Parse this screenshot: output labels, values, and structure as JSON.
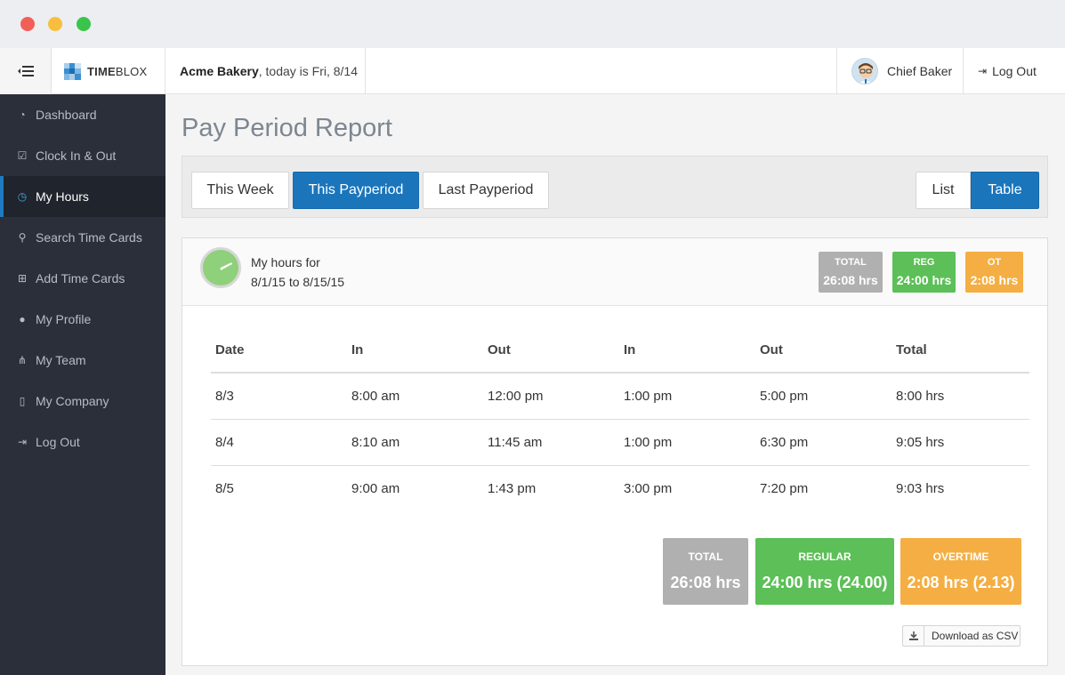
{
  "header": {
    "brand_bold": "TIME",
    "brand_light": "BLOX",
    "company_name": "Acme Bakery",
    "company_suffix": ", today is Fri, 8/14",
    "user_name": "Chief Baker",
    "logout": "Log Out"
  },
  "sidebar": {
    "items": [
      {
        "label": "Dashboard",
        "icon": "dashboard-icon",
        "glyph": "◔"
      },
      {
        "label": "Clock In & Out",
        "icon": "check-square-icon",
        "glyph": "☑"
      },
      {
        "label": "My Hours",
        "icon": "clock-icon",
        "glyph": "◷"
      },
      {
        "label": "Search Time Cards",
        "icon": "search-icon",
        "glyph": "⚲"
      },
      {
        "label": "Add Time Cards",
        "icon": "plus-square-icon",
        "glyph": "⊞"
      },
      {
        "label": "My Profile",
        "icon": "user-icon",
        "glyph": "●"
      },
      {
        "label": "My Team",
        "icon": "sitemap-icon",
        "glyph": "⋔"
      },
      {
        "label": "My Company",
        "icon": "building-icon",
        "glyph": "▯"
      },
      {
        "label": "Log Out",
        "icon": "sign-out-icon",
        "glyph": "⇥"
      }
    ]
  },
  "main": {
    "title": "Pay Period Report",
    "filters": {
      "this_week": "This Week",
      "this_payperiod": "This Payperiod",
      "last_payperiod": "Last Payperiod",
      "list": "List",
      "table": "Table"
    },
    "panel": {
      "hours_for": "My hours for",
      "range": "8/1/15 to 8/15/15",
      "badges": {
        "total_label": "TOTAL",
        "total_value": "26:08 hrs",
        "reg_label": "REG",
        "reg_value": "24:00 hrs",
        "ot_label": "OT",
        "ot_value": "2:08 hrs"
      },
      "table": {
        "headers": [
          "Date",
          "In",
          "Out",
          "In",
          "Out",
          "Total"
        ],
        "rows": [
          [
            "8/3",
            "8:00 am",
            "12:00 pm",
            "1:00 pm",
            "5:00 pm",
            "8:00 hrs"
          ],
          [
            "8/4",
            "8:10 am",
            "11:45 am",
            "1:00 pm",
            "6:30 pm",
            "9:05 hrs"
          ],
          [
            "8/5",
            "9:00 am",
            "1:43 pm",
            "3:00 pm",
            "7:20 pm",
            "9:03 hrs"
          ]
        ]
      },
      "summary": {
        "total_label": "TOTAL",
        "total_value": "26:08 hrs",
        "regular_label": "REGULAR",
        "regular_value": "24:00 hrs (24.00)",
        "overtime_label": "OVERTIME",
        "overtime_value": "2:08 hrs (2.13)"
      },
      "download_csv": "Download as CSV"
    }
  },
  "colors": {
    "primary": "#1b75bb",
    "sidebar_bg": "#2b2f3a",
    "total_gray": "#b0b0b0",
    "regular_green": "#5cbf57",
    "overtime_orange": "#f4ae43"
  }
}
